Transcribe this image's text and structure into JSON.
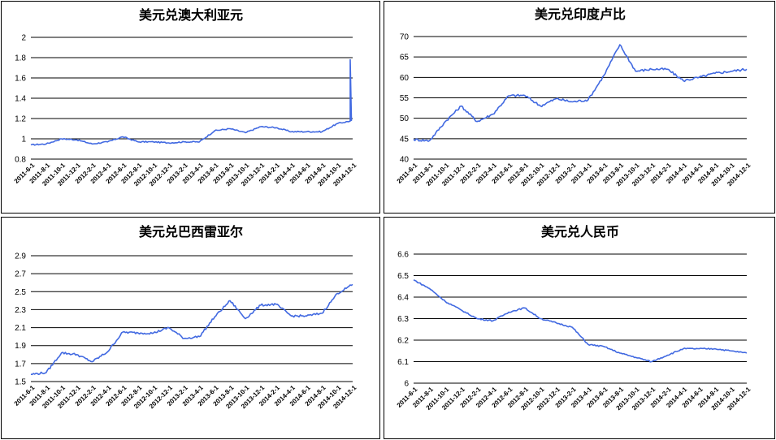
{
  "colors": {
    "line": "#4169e1",
    "grid": "#000000",
    "border": "#000000"
  },
  "chart_data": [
    {
      "type": "line",
      "title": "美元兑澳大利亚元",
      "ylim": [
        0.8,
        2
      ],
      "yticks": [
        "0.8",
        "1",
        "1.2",
        "1.4",
        "1.6",
        "1.8",
        "2"
      ],
      "grid": "horizontal",
      "x": [
        "2011-6-1",
        "2011-8-1",
        "2011-10-1",
        "2011-12-1",
        "2012-2-1",
        "2012-4-1",
        "2012-6-1",
        "2012-8-1",
        "2012-10-1",
        "2012-12-1",
        "2013-2-1",
        "2013-4-1",
        "2013-6-1",
        "2013-8-1",
        "2013-10-1",
        "2013-12-1",
        "2014-2-1",
        "2014-4-1",
        "2014-6-1",
        "2014-8-1",
        "2014-10-1",
        "2014-12-1"
      ],
      "xticks": [
        "2011-6-1",
        "2011-8-1",
        "2011-10-1",
        "2011-12-1",
        "2012-2-1",
        "2012-4-1",
        "2012-6-1",
        "2012-8-1",
        "2012-10-1",
        "2012-12-1",
        "2013-2-1",
        "2013-4-1",
        "2013-6-1",
        "2013-8-1",
        "2013-10-1",
        "2013-12-1",
        "2014-2-1",
        "2014-4-1",
        "2014-6-1",
        "2014-8-1",
        "2014-10-1",
        "2014-12-1"
      ],
      "series": [
        {
          "values": [
            0.94,
            0.95,
            1.0,
            0.99,
            0.95,
            0.97,
            1.02,
            0.97,
            0.97,
            0.96,
            0.97,
            0.97,
            1.08,
            1.1,
            1.06,
            1.12,
            1.11,
            1.07,
            1.07,
            1.07,
            1.15,
            1.18
          ]
        }
      ],
      "spike": {
        "x": "2014-12-1",
        "y": 1.78
      }
    },
    {
      "type": "line",
      "title": "美元兑印度卢比",
      "ylim": [
        40,
        70
      ],
      "yticks": [
        "40",
        "45",
        "50",
        "55",
        "60",
        "65",
        "70"
      ],
      "grid": "horizontal",
      "x": [
        "2011-6-1",
        "2011-8-1",
        "2011-10-1",
        "2011-12-1",
        "2012-2-1",
        "2012-4-1",
        "2012-6-1",
        "2012-8-1",
        "2012-10-1",
        "2012-12-1",
        "2013-2-1",
        "2013-4-1",
        "2013-6-1",
        "2013-8-1",
        "2013-10-1",
        "2013-12-1",
        "2014-2-1",
        "2014-4-1",
        "2014-6-1",
        "2014-8-1",
        "2014-10-1",
        "2014-12-1"
      ],
      "xticks": [
        "2011-6-1",
        "2011-8-1",
        "2011-10-1",
        "2011-12-1",
        "2012-2-1",
        "2012-4-1",
        "2012-6-1",
        "2012-8-1",
        "2012-10-1",
        "2012-12-1",
        "2013-2-1",
        "2013-4-1",
        "2013-6-1",
        "2013-8-1",
        "2013-10-1",
        "2013-12-1",
        "2014-2-1",
        "2014-4-1",
        "2014-6-1",
        "2014-8-1",
        "2014-10-1",
        "2014-12-1"
      ],
      "series": [
        {
          "values": [
            44.8,
            44.5,
            49.2,
            53.0,
            49.2,
            51.0,
            55.5,
            55.6,
            53.0,
            54.8,
            54.0,
            54.5,
            60.5,
            68.0,
            61.5,
            62.0,
            62.0,
            59.2,
            60.0,
            61.0,
            61.5,
            62.0
          ]
        }
      ]
    },
    {
      "type": "line",
      "title": "美元兑巴西雷亚尔",
      "ylim": [
        1.5,
        2.9
      ],
      "yticks": [
        "1.5",
        "1.7",
        "1.9",
        "2.1",
        "2.3",
        "2.5",
        "2.7",
        "2.9"
      ],
      "grid": "horizontal",
      "x": [
        "2011-6-1",
        "2011-8-1",
        "2011-10-1",
        "2011-12-1",
        "2012-2-1",
        "2012-4-1",
        "2012-6-1",
        "2012-8-1",
        "2012-10-1",
        "2012-12-1",
        "2013-2-1",
        "2013-4-1",
        "2013-6-1",
        "2013-8-1",
        "2013-10-1",
        "2013-12-1",
        "2014-2-1",
        "2014-4-1",
        "2014-6-1",
        "2014-8-1",
        "2014-10-1",
        "2014-12-1"
      ],
      "xticks": [
        "2011-6-1",
        "2011-8-1",
        "2011-10-1",
        "2011-12-1",
        "2012-2-1",
        "2012-4-1",
        "2012-6-1",
        "2012-8-1",
        "2012-10-1",
        "2012-12-1",
        "2013-2-1",
        "2013-4-1",
        "2013-6-1",
        "2013-8-1",
        "2013-10-1",
        "2013-12-1",
        "2014-2-1",
        "2014-4-1",
        "2014-6-1",
        "2014-8-1",
        "2014-10-1",
        "2014-12-1"
      ],
      "series": [
        {
          "values": [
            1.58,
            1.6,
            1.82,
            1.8,
            1.72,
            1.83,
            2.05,
            2.04,
            2.04,
            2.1,
            1.98,
            2.0,
            2.22,
            2.4,
            2.2,
            2.35,
            2.36,
            2.23,
            2.23,
            2.26,
            2.48,
            2.58
          ]
        }
      ]
    },
    {
      "type": "line",
      "title": "美元兑人民币",
      "ylim": [
        6,
        6.6
      ],
      "yticks": [
        "6",
        "6.1",
        "6.2",
        "6.3",
        "6.4",
        "6.5",
        "6.6"
      ],
      "grid": "horizontal",
      "x": [
        "2011-6-1",
        "2011-8-1",
        "2011-10-1",
        "2011-12-1",
        "2012-2-1",
        "2012-4-1",
        "2012-6-1",
        "2012-8-1",
        "2012-10-1",
        "2012-12-1",
        "2013-2-1",
        "2013-4-1",
        "2013-6-1",
        "2013-8-1",
        "2013-10-1",
        "2013-12-1",
        "2014-2-1",
        "2014-4-1",
        "2014-6-1",
        "2014-8-1",
        "2014-10-1",
        "2014-12-1"
      ],
      "xticks": [
        "2011-6-1",
        "2011-8-1",
        "2011-10-1",
        "2011-12-1",
        "2012-2-1",
        "2012-4-1",
        "2012-6-1",
        "2012-8-1",
        "2012-10-1",
        "2012-12-1",
        "2013-2-1",
        "2013-4-1",
        "2013-6-1",
        "2013-8-1",
        "2013-10-1",
        "2013-12-1",
        "2014-2-1",
        "2014-4-1",
        "2014-6-1",
        "2014-8-1",
        "2014-10-1",
        "2014-12-1"
      ],
      "series": [
        {
          "values": [
            6.48,
            6.44,
            6.38,
            6.34,
            6.3,
            6.29,
            6.33,
            6.35,
            6.3,
            6.28,
            6.26,
            6.18,
            6.17,
            6.14,
            6.12,
            6.1,
            6.13,
            6.16,
            6.16,
            6.16,
            6.15,
            6.14
          ]
        }
      ]
    }
  ]
}
